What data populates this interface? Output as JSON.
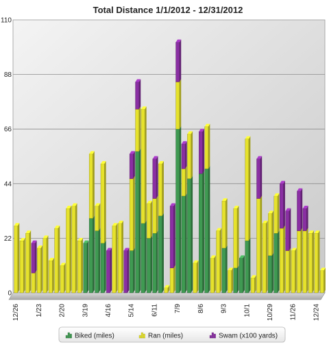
{
  "chart_data": {
    "type": "bar",
    "title": "Total Distance 1/1/2012 - 12/31/2012",
    "xlabel": "",
    "ylabel": "",
    "ylim": [
      0,
      110
    ],
    "y_ticks": [
      0,
      22,
      44,
      66,
      88,
      110
    ],
    "x_tick_labels": [
      "12/26",
      "1/23",
      "2/20",
      "3/19",
      "4/16",
      "5/14",
      "6/11",
      "7/9",
      "8/6",
      "9/3",
      "10/1",
      "10/29",
      "11/26",
      "12/24"
    ],
    "x_tick_week_index": [
      0,
      4,
      8,
      12,
      16,
      20,
      24,
      28,
      32,
      36,
      40,
      44,
      48,
      52
    ],
    "stacked": true,
    "legend_position": "bottom",
    "grid": true,
    "weeks": 54,
    "series": [
      {
        "name": "Biked (miles)",
        "color": "#3f9a52",
        "values": [
          0,
          0,
          0,
          0,
          0,
          0,
          0,
          0,
          0,
          0,
          0,
          0,
          20,
          30,
          25,
          20,
          0,
          0,
          0,
          0,
          17,
          57,
          28,
          22,
          24,
          31,
          0,
          0,
          66,
          39,
          46,
          0,
          48,
          50,
          0,
          0,
          18,
          0,
          10,
          14,
          21,
          0,
          0,
          0,
          15,
          24,
          0,
          0,
          0,
          0,
          0,
          0,
          0,
          0
        ]
      },
      {
        "name": "Ran (miles)",
        "color": "#e6e22c",
        "values": [
          27,
          21,
          24,
          8,
          18,
          22,
          13,
          26,
          11,
          34,
          35,
          21,
          0,
          26,
          10,
          32,
          0,
          27,
          28,
          0,
          29,
          17,
          46,
          14,
          14,
          21,
          2,
          10,
          19,
          11,
          18,
          12,
          0,
          17,
          14,
          25,
          19,
          9,
          24,
          0,
          41,
          6,
          38,
          28,
          17,
          15,
          26,
          17,
          17,
          25,
          25,
          24,
          24,
          9
        ]
      },
      {
        "name": "Swam (x100 yards)",
        "color": "#8a2fa3",
        "values": [
          0,
          0,
          0,
          12,
          0,
          0,
          0,
          0,
          0,
          0,
          0,
          0,
          0,
          0,
          0,
          0,
          17,
          0,
          0,
          17,
          10,
          11,
          0,
          0,
          16,
          0,
          0,
          25,
          16,
          10,
          0,
          0,
          17,
          0,
          0,
          0,
          0,
          0,
          0,
          0,
          0,
          0,
          16,
          0,
          0,
          0,
          18,
          16,
          0,
          16,
          9,
          0,
          0,
          0
        ]
      }
    ]
  }
}
